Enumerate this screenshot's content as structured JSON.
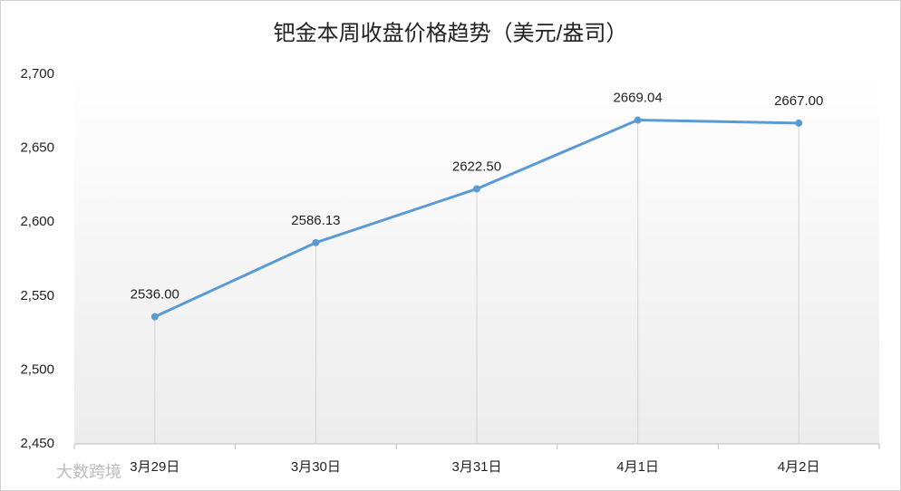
{
  "chart_data": {
    "type": "line",
    "title": "钯金本周收盘价格趋势（美元/盎司）",
    "categories": [
      "3月29日",
      "3月30日",
      "3月31日",
      "4月1日",
      "4月2日"
    ],
    "values": [
      2536.0,
      2586.13,
      2622.5,
      2669.04,
      2667.0
    ],
    "value_labels": [
      "2536.00",
      "2586.13",
      "2622.50",
      "2669.04",
      "2667.00"
    ],
    "color": "#5b9bd5",
    "ylim": [
      2450,
      2700
    ],
    "yticks": [
      {
        "value": 2450,
        "label": "2,450"
      },
      {
        "value": 2500,
        "label": "2,500"
      },
      {
        "value": 2550,
        "label": "2,550"
      },
      {
        "value": 2600,
        "label": "2,600"
      },
      {
        "value": 2650,
        "label": "2,650"
      },
      {
        "value": 2700,
        "label": "2,700"
      }
    ],
    "drop_lines": true,
    "watermark": "大数跨境"
  }
}
